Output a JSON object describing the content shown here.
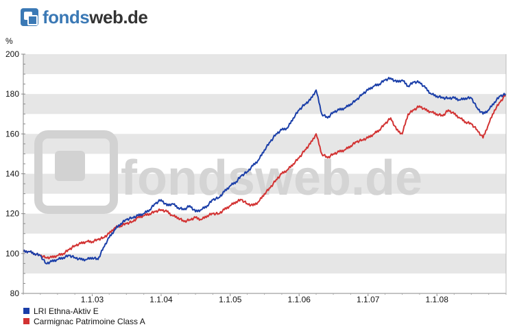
{
  "brand": {
    "logo_part1": "fonds",
    "logo_part2": "web.de",
    "watermark": "fondsweb.de"
  },
  "chart_data": {
    "type": "line",
    "title": "",
    "xlabel": "",
    "ylabel": "%",
    "ylim": [
      80,
      200
    ],
    "yticks": [
      80,
      100,
      120,
      140,
      160,
      180,
      200
    ],
    "x_range": [
      "2002-01-01",
      "2009-01-01"
    ],
    "x_ticks": [
      "1.1.03",
      "1.1.04",
      "1.1.05",
      "1.1.06",
      "1.1.07",
      "1.1.08"
    ],
    "grid_bands": true,
    "legend_position": "bottom-left",
    "series": [
      {
        "name": "LRI Ethna-Aktiv E",
        "color": "#1a3ea8",
        "x": [
          "2002-01-01",
          "2002-02-01",
          "2002-03-01",
          "2002-04-01",
          "2002-05-01",
          "2002-06-01",
          "2002-07-01",
          "2002-08-01",
          "2002-09-01",
          "2002-10-01",
          "2002-11-01",
          "2002-12-01",
          "2003-01-01",
          "2003-02-01",
          "2003-03-01",
          "2003-04-01",
          "2003-05-01",
          "2003-06-01",
          "2003-07-01",
          "2003-08-01",
          "2003-09-01",
          "2003-10-01",
          "2003-11-01",
          "2003-12-01",
          "2004-01-01",
          "2004-02-01",
          "2004-03-01",
          "2004-04-01",
          "2004-05-01",
          "2004-06-01",
          "2004-07-01",
          "2004-08-01",
          "2004-09-01",
          "2004-10-01",
          "2004-11-01",
          "2004-12-01",
          "2005-01-01",
          "2005-02-01",
          "2005-03-01",
          "2005-04-01",
          "2005-05-01",
          "2005-06-01",
          "2005-07-01",
          "2005-08-01",
          "2005-09-01",
          "2005-10-01",
          "2005-11-01",
          "2005-12-01",
          "2006-01-01",
          "2006-02-01",
          "2006-03-01",
          "2006-04-01",
          "2006-05-01",
          "2006-06-01",
          "2006-07-01",
          "2006-08-01",
          "2006-09-01",
          "2006-10-01",
          "2006-11-01",
          "2006-12-01",
          "2007-01-01",
          "2007-02-01",
          "2007-03-01",
          "2007-04-01",
          "2007-05-01",
          "2007-06-01",
          "2007-07-01",
          "2007-08-01",
          "2007-09-01",
          "2007-10-01",
          "2007-11-01",
          "2007-12-01",
          "2008-01-01",
          "2008-02-01",
          "2008-03-01",
          "2008-04-01",
          "2008-05-01",
          "2008-06-01",
          "2008-07-01",
          "2008-08-01",
          "2008-09-01",
          "2008-10-01",
          "2008-11-01",
          "2008-12-01",
          "2009-01-01"
        ],
        "values": [
          101,
          101,
          100,
          99,
          95,
          96,
          97,
          98,
          99,
          98,
          97,
          97,
          98,
          97,
          103,
          108,
          112,
          115,
          117,
          118,
          119,
          120,
          122,
          125,
          127,
          124,
          125,
          123,
          122,
          124,
          121,
          122,
          124,
          127,
          128,
          131,
          134,
          136,
          139,
          141,
          144,
          147,
          152,
          156,
          160,
          162,
          163,
          168,
          172,
          175,
          177,
          182,
          170,
          168,
          171,
          172,
          173,
          175,
          177,
          180,
          182,
          184,
          185,
          187,
          188,
          186,
          187,
          184,
          186,
          186,
          183,
          180,
          179,
          178,
          178,
          178,
          177,
          178,
          178,
          173,
          170,
          172,
          176,
          179,
          180
        ]
      },
      {
        "name": "Carmignac Patrimoine Class A",
        "color": "#d23232",
        "x": [
          "2002-01-01",
          "2002-02-01",
          "2002-03-01",
          "2002-04-01",
          "2002-05-01",
          "2002-06-01",
          "2002-07-01",
          "2002-08-01",
          "2002-09-01",
          "2002-10-01",
          "2002-11-01",
          "2002-12-01",
          "2003-01-01",
          "2003-02-01",
          "2003-03-01",
          "2003-04-01",
          "2003-05-01",
          "2003-06-01",
          "2003-07-01",
          "2003-08-01",
          "2003-09-01",
          "2003-10-01",
          "2003-11-01",
          "2003-12-01",
          "2004-01-01",
          "2004-02-01",
          "2004-03-01",
          "2004-04-01",
          "2004-05-01",
          "2004-06-01",
          "2004-07-01",
          "2004-08-01",
          "2004-09-01",
          "2004-10-01",
          "2004-11-01",
          "2004-12-01",
          "2005-01-01",
          "2005-02-01",
          "2005-03-01",
          "2005-04-01",
          "2005-05-01",
          "2005-06-01",
          "2005-07-01",
          "2005-08-01",
          "2005-09-01",
          "2005-10-01",
          "2005-11-01",
          "2005-12-01",
          "2006-01-01",
          "2006-02-01",
          "2006-03-01",
          "2006-04-01",
          "2006-05-01",
          "2006-06-01",
          "2006-07-01",
          "2006-08-01",
          "2006-09-01",
          "2006-10-01",
          "2006-11-01",
          "2006-12-01",
          "2007-01-01",
          "2007-02-01",
          "2007-03-01",
          "2007-04-01",
          "2007-05-01",
          "2007-06-01",
          "2007-07-01",
          "2007-08-01",
          "2007-09-01",
          "2007-10-01",
          "2007-11-01",
          "2007-12-01",
          "2008-01-01",
          "2008-02-01",
          "2008-03-01",
          "2008-04-01",
          "2008-05-01",
          "2008-06-01",
          "2008-07-01",
          "2008-08-01",
          "2008-09-01",
          "2008-10-01",
          "2008-11-01",
          "2008-12-01",
          "2009-01-01"
        ],
        "values": [
          101,
          101,
          100,
          99,
          98,
          98,
          99,
          100,
          102,
          104,
          105,
          106,
          106,
          107,
          108,
          110,
          113,
          114,
          115,
          116,
          118,
          119,
          120,
          121,
          122,
          121,
          119,
          118,
          116,
          117,
          118,
          117,
          119,
          120,
          120,
          122,
          124,
          126,
          127,
          125,
          124,
          126,
          130,
          133,
          137,
          140,
          142,
          145,
          148,
          152,
          155,
          160,
          150,
          148,
          150,
          151,
          152,
          154,
          156,
          157,
          158,
          160,
          162,
          165,
          168,
          162,
          160,
          170,
          172,
          174,
          172,
          171,
          170,
          169,
          172,
          170,
          168,
          166,
          165,
          162,
          158,
          165,
          172,
          176,
          180
        ]
      }
    ]
  }
}
